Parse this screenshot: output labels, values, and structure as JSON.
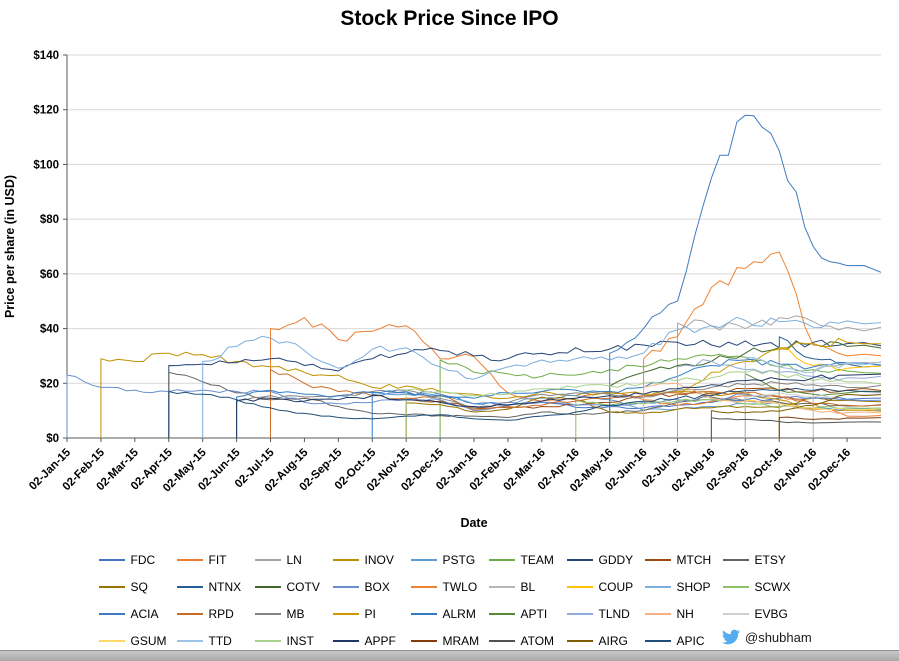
{
  "chart_data": {
    "type": "line",
    "title": "Stock Price Since IPO",
    "xlabel": "Date",
    "ylabel": "Price per share (in USD)",
    "ylim": [
      0,
      140
    ],
    "yticks": [
      0,
      20,
      40,
      60,
      80,
      100,
      120,
      140
    ],
    "ytick_labels": [
      "$0",
      "$20",
      "$40",
      "$60",
      "$80",
      "$100",
      "$120",
      "$140"
    ],
    "x_labels": [
      "02-Jan-15",
      "02-Feb-15",
      "02-Mar-15",
      "02-Apr-15",
      "02-May-15",
      "02-Jun-15",
      "02-Jul-15",
      "02-Aug-15",
      "02-Sep-15",
      "02-Oct-15",
      "02-Nov-15",
      "02-Dec-15",
      "02-Jan-16",
      "02-Feb-16",
      "02-Mar-16",
      "02-Apr-16",
      "02-May-16",
      "02-Jun-16",
      "02-Jul-16",
      "02-Aug-16",
      "02-Sep-16",
      "02-Oct-16",
      "02-Nov-16",
      "02-Dec-16"
    ],
    "grid": true,
    "legend_position": "bottom",
    "gridline_color": "#d9d9d9",
    "axis_color": "#595959",
    "series": [
      {
        "name": "FDC",
        "color": "#4472C4",
        "values": [
          null,
          null,
          null,
          null,
          null,
          null,
          null,
          null,
          null,
          16,
          16.5,
          16,
          12.5,
          12.2,
          13,
          11.2,
          11.5,
          11,
          12,
          13,
          14,
          14.5,
          15,
          14.2
        ]
      },
      {
        "name": "FIT",
        "color": "#ED7D31",
        "values": [
          null,
          null,
          null,
          null,
          null,
          null,
          40,
          44,
          36,
          39,
          41,
          29,
          29.7,
          16.5,
          13.5,
          14.5,
          17,
          14,
          12,
          13.5,
          15.5,
          15.3,
          12.5,
          8
        ]
      },
      {
        "name": "LN",
        "color": "#A5A5A5",
        "values": [
          null,
          null,
          null,
          null,
          null,
          null,
          null,
          null,
          null,
          null,
          null,
          null,
          null,
          null,
          null,
          null,
          null,
          null,
          42,
          41,
          40,
          44,
          42.5,
          40.5
        ]
      },
      {
        "name": "INOV",
        "color": "#BF9000",
        "values": [
          null,
          29,
          28,
          31,
          30.5,
          28,
          26,
          24,
          23,
          18.5,
          19,
          17,
          16,
          14.5,
          17,
          15.5,
          16.5,
          16,
          17,
          16,
          16.5,
          14,
          10.5,
          10.2
        ]
      },
      {
        "name": "PSTG",
        "color": "#5B9BD5",
        "values": [
          null,
          null,
          null,
          null,
          null,
          null,
          null,
          null,
          null,
          16.8,
          16,
          15.5,
          12.5,
          13,
          14.5,
          15.5,
          14,
          10.2,
          10.5,
          11.5,
          12.5,
          13,
          11,
          10.5
        ]
      },
      {
        "name": "TEAM",
        "color": "#70AD47",
        "values": [
          null,
          null,
          null,
          null,
          null,
          null,
          null,
          null,
          null,
          null,
          null,
          28.5,
          24,
          23.5,
          22.5,
          23,
          25,
          26,
          29,
          30,
          29.5,
          26,
          25,
          24.5
        ]
      },
      {
        "name": "GDDY",
        "color": "#264478",
        "values": [
          null,
          null,
          null,
          26.5,
          27,
          27.5,
          29,
          26.5,
          24.5,
          29,
          31,
          32,
          30,
          29,
          31,
          33,
          32.5,
          34,
          35,
          34,
          35.5,
          33,
          35,
          34.5
        ]
      },
      {
        "name": "MTCH",
        "color": "#9E480E",
        "values": [
          null,
          null,
          null,
          null,
          null,
          null,
          null,
          null,
          null,
          null,
          14,
          13.5,
          11,
          11,
          11.5,
          12,
          13,
          15.5,
          16,
          16.5,
          18,
          17.5,
          17,
          17.5
        ]
      },
      {
        "name": "ETSY",
        "color": "#636363",
        "values": [
          null,
          null,
          null,
          24,
          20.5,
          16.5,
          14,
          14.5,
          11.5,
          9,
          8.5,
          8.2,
          8,
          7.5,
          9.5,
          8.5,
          9.5,
          10,
          13,
          15,
          13.5,
          13,
          12.5,
          11.7
        ]
      },
      {
        "name": "SQ",
        "color": "#997300",
        "values": [
          null,
          null,
          null,
          null,
          null,
          null,
          null,
          null,
          null,
          null,
          12.8,
          12.2,
          9.5,
          10.5,
          15,
          14,
          9.5,
          9,
          10.5,
          11,
          11.5,
          11.2,
          14.5,
          13.8
        ]
      },
      {
        "name": "NTNX",
        "color": "#255E91",
        "values": [
          null,
          null,
          null,
          null,
          null,
          null,
          null,
          null,
          null,
          null,
          null,
          null,
          null,
          null,
          null,
          null,
          null,
          null,
          null,
          null,
          null,
          37,
          29,
          27
        ]
      },
      {
        "name": "COTV",
        "color": "#43682B",
        "values": [
          null,
          null,
          null,
          null,
          null,
          null,
          null,
          null,
          null,
          null,
          null,
          null,
          null,
          null,
          null,
          null,
          19,
          24,
          26.5,
          28,
          31,
          33,
          34.5,
          33.5
        ]
      },
      {
        "name": "BOX",
        "color": "#698ED0",
        "values": [
          23,
          18.5,
          17.5,
          17,
          17.5,
          17,
          17,
          13,
          12.5,
          13,
          14,
          14,
          10,
          12,
          13,
          12,
          11.5,
          13,
          14,
          14,
          16,
          15,
          14.5,
          14
        ]
      },
      {
        "name": "TWLO",
        "color": "#EE8433",
        "values": [
          null,
          null,
          null,
          null,
          null,
          null,
          null,
          null,
          null,
          null,
          null,
          null,
          null,
          null,
          null,
          null,
          null,
          29,
          37,
          55,
          62,
          68,
          34,
          30
        ]
      },
      {
        "name": "BL",
        "color": "#B7B7B7",
        "values": [
          null,
          null,
          null,
          null,
          null,
          null,
          null,
          null,
          null,
          null,
          null,
          null,
          null,
          null,
          null,
          null,
          null,
          null,
          null,
          null,
          null,
          null,
          24.5,
          27
        ]
      },
      {
        "name": "COUP",
        "color": "#FFC000",
        "values": [
          null,
          null,
          null,
          null,
          null,
          null,
          null,
          null,
          null,
          null,
          null,
          null,
          null,
          null,
          null,
          null,
          null,
          null,
          null,
          null,
          null,
          33,
          26.5,
          25.5
        ]
      },
      {
        "name": "SHOP",
        "color": "#7CAFDD",
        "values": [
          null,
          null,
          null,
          null,
          28,
          33.5,
          36.5,
          32,
          25.5,
          32.5,
          33,
          26,
          21.5,
          26,
          28.5,
          29,
          28.5,
          31,
          39.5,
          41,
          43,
          42.5,
          40.5,
          42.8
        ]
      },
      {
        "name": "SCWX",
        "color": "#8CC168",
        "values": [
          null,
          null,
          null,
          null,
          null,
          null,
          null,
          null,
          null,
          null,
          null,
          null,
          null,
          null,
          null,
          13.9,
          12,
          12.5,
          13.5,
          14,
          12.5,
          11.5,
          11,
          11
        ]
      },
      {
        "name": "ACIA",
        "color": "#3F7BC0",
        "values": [
          null,
          null,
          null,
          null,
          null,
          null,
          null,
          null,
          null,
          null,
          null,
          null,
          null,
          null,
          null,
          null,
          31,
          40,
          50,
          95,
          118,
          105,
          70,
          63
        ]
      },
      {
        "name": "RPD",
        "color": "#CA6C27",
        "values": [
          null,
          null,
          null,
          null,
          null,
          null,
          25,
          20,
          17,
          15.5,
          14.5,
          15.5,
          10.5,
          11.5,
          12,
          13.5,
          14.5,
          15.5,
          16.5,
          17,
          16.5,
          15,
          12.5,
          12
        ]
      },
      {
        "name": "MB",
        "color": "#848484",
        "values": [
          null,
          null,
          null,
          null,
          null,
          13.8,
          15.5,
          15,
          15.5,
          17,
          17.5,
          14.5,
          11,
          13,
          16,
          16.5,
          16,
          15,
          17.5,
          18.5,
          19.5,
          20,
          19.5,
          18.5
        ]
      },
      {
        "name": "PI",
        "color": "#CC9A00",
        "values": [
          null,
          null,
          null,
          null,
          null,
          null,
          null,
          null,
          null,
          null,
          null,
          null,
          null,
          null,
          null,
          null,
          null,
          null,
          16,
          24,
          28,
          32.5,
          34.5,
          35
        ]
      },
      {
        "name": "ALRM",
        "color": "#327DC2",
        "values": [
          null,
          null,
          null,
          null,
          null,
          15,
          17.5,
          16,
          15.5,
          16.5,
          17,
          15.5,
          14.5,
          16.5,
          17,
          17.5,
          17,
          18.5,
          22.5,
          26.5,
          28.5,
          27,
          26,
          27.5
        ]
      },
      {
        "name": "APTI",
        "color": "#5A8A39",
        "values": [
          null,
          null,
          null,
          null,
          null,
          null,
          null,
          null,
          null,
          null,
          null,
          null,
          null,
          null,
          null,
          null,
          null,
          null,
          null,
          null,
          23.5,
          17.5,
          16,
          16.5
        ]
      },
      {
        "name": "TLND",
        "color": "#8FAADC",
        "values": [
          null,
          null,
          null,
          null,
          null,
          null,
          null,
          null,
          null,
          null,
          null,
          null,
          null,
          null,
          null,
          null,
          null,
          null,
          26,
          28,
          25,
          24,
          22.5,
          22
        ]
      },
      {
        "name": "NH",
        "color": "#F4B183",
        "values": [
          null,
          null,
          null,
          null,
          null,
          null,
          null,
          null,
          null,
          null,
          null,
          null,
          null,
          null,
          null,
          null,
          null,
          18.6,
          20,
          14.5,
          13.5,
          12.5,
          10,
          9.2
        ]
      },
      {
        "name": "EVBG",
        "color": "#CFCFCF",
        "values": [
          null,
          null,
          null,
          null,
          null,
          null,
          null,
          null,
          null,
          null,
          null,
          null,
          null,
          null,
          null,
          null,
          null,
          null,
          null,
          null,
          14.8,
          16.5,
          15,
          15.8
        ]
      },
      {
        "name": "GSUM",
        "color": "#FFD966",
        "values": [
          null,
          null,
          null,
          null,
          null,
          null,
          null,
          null,
          null,
          null,
          null,
          null,
          null,
          null,
          null,
          null,
          null,
          null,
          null,
          null,
          13.8,
          12.5,
          11,
          10.5
        ]
      },
      {
        "name": "TTD",
        "color": "#9DC3E6",
        "values": [
          null,
          null,
          null,
          null,
          null,
          null,
          null,
          null,
          null,
          null,
          null,
          null,
          null,
          null,
          null,
          null,
          null,
          null,
          null,
          null,
          29.5,
          26,
          24,
          27.5
        ]
      },
      {
        "name": "INST",
        "color": "#A9D18E",
        "values": [
          null,
          null,
          null,
          null,
          null,
          null,
          null,
          null,
          null,
          null,
          17.5,
          17,
          15.5,
          16,
          18,
          18.5,
          19,
          20,
          21,
          22,
          24,
          23.5,
          21,
          20.5
        ]
      },
      {
        "name": "APPF",
        "color": "#203864",
        "values": [
          null,
          null,
          null,
          null,
          null,
          13.5,
          14.5,
          13.5,
          14,
          15.5,
          14,
          13,
          11.5,
          12,
          13.5,
          14.5,
          15.5,
          16,
          18,
          19.5,
          21,
          21.5,
          22,
          23
        ]
      },
      {
        "name": "MRAM",
        "color": "#843C0C",
        "values": [
          null,
          null,
          null,
          null,
          null,
          null,
          null,
          null,
          null,
          null,
          null,
          null,
          null,
          null,
          null,
          null,
          null,
          null,
          null,
          null,
          null,
          7.5,
          6.8,
          7.3
        ]
      },
      {
        "name": "ATOM",
        "color": "#525252",
        "values": [
          null,
          null,
          null,
          null,
          null,
          null,
          null,
          null,
          null,
          null,
          null,
          null,
          null,
          null,
          null,
          null,
          null,
          null,
          null,
          7.4,
          6.8,
          6,
          5.5,
          5.8
        ]
      },
      {
        "name": "AIRG",
        "color": "#7F6000",
        "values": [
          null,
          null,
          null,
          null,
          null,
          null,
          null,
          null,
          null,
          null,
          null,
          null,
          null,
          null,
          null,
          null,
          null,
          null,
          null,
          10,
          9.2,
          9.8,
          12,
          16
        ]
      },
      {
        "name": "APIC",
        "color": "#1F4E79",
        "values": [
          null,
          null,
          null,
          17,
          16,
          14,
          11,
          9,
          7.5,
          7,
          8,
          8.5,
          7,
          6.5,
          8,
          9.5,
          12,
          13.5,
          14.5,
          15.5,
          17.3,
          17.4,
          17.4,
          17.4
        ]
      }
    ]
  },
  "footer": {
    "twitter_handle": "@shubham",
    "twitter_color": "#55ACEE"
  }
}
